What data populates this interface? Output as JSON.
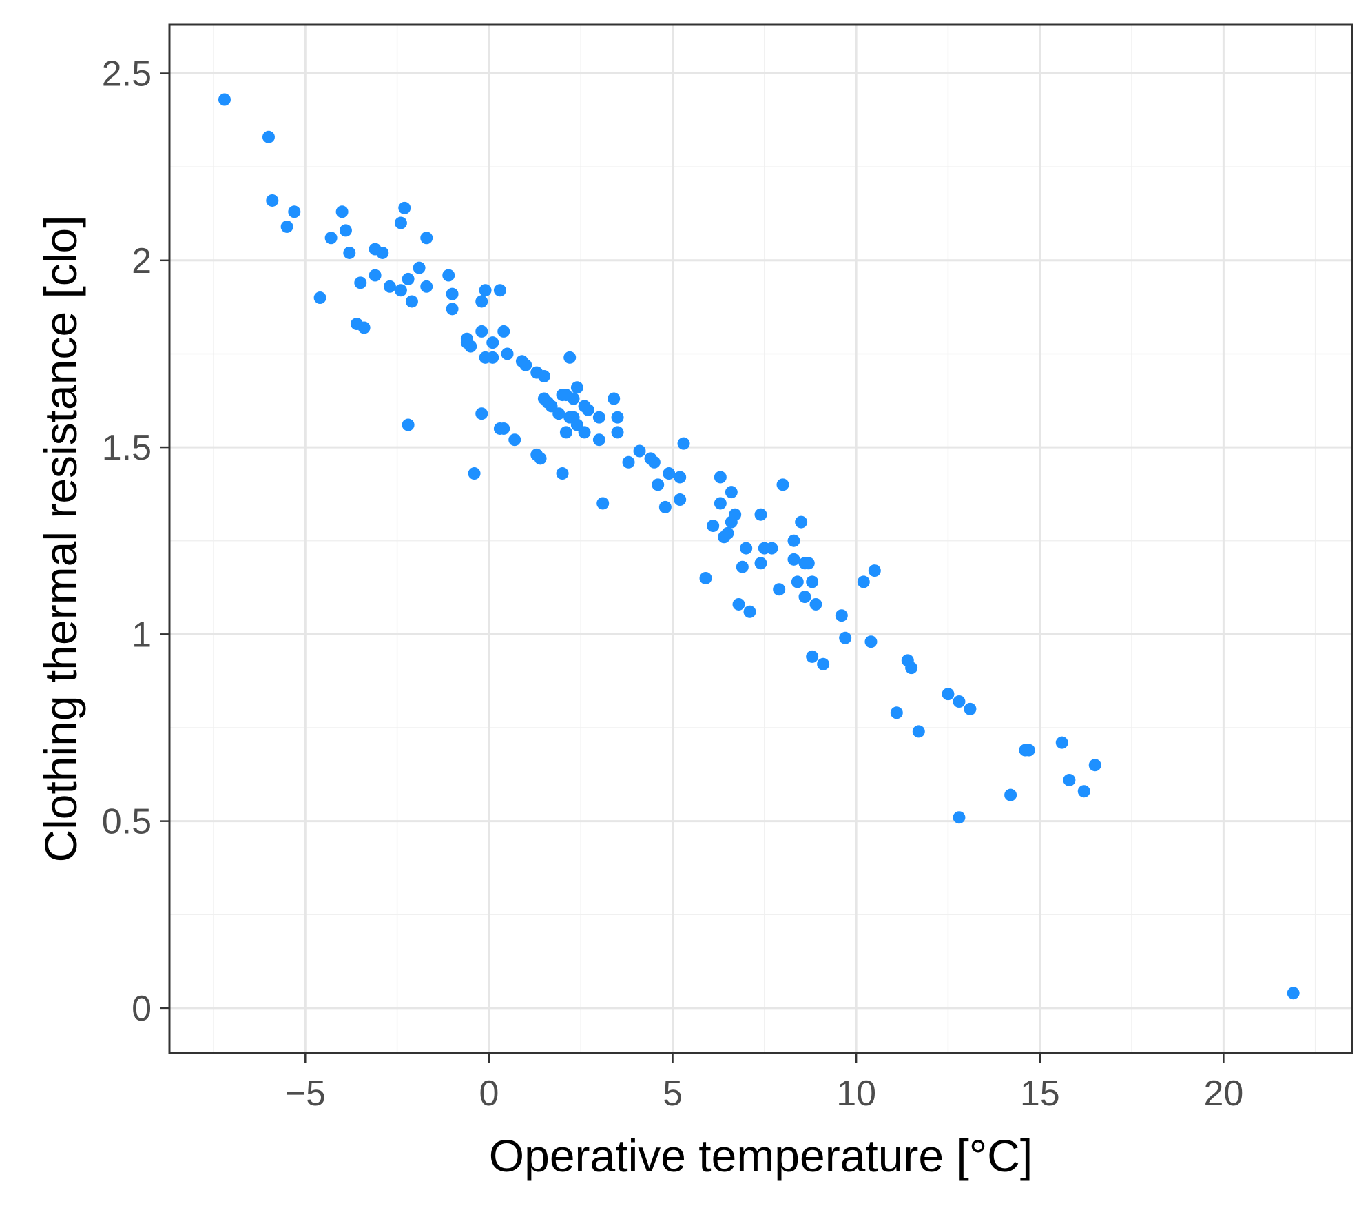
{
  "chart_data": {
    "type": "scatter",
    "title": "",
    "xlabel": "Operative temperature [°C]",
    "ylabel": "Clothing thermal resistance [clo]",
    "xlim": [
      -8.7,
      23.5
    ],
    "ylim": [
      -0.12,
      2.63
    ],
    "x_ticks": [
      -5,
      0,
      5,
      10,
      15,
      20
    ],
    "x_tick_labels": [
      "−5",
      "0",
      "5",
      "10",
      "15",
      "20"
    ],
    "y_ticks": [
      0,
      0.5,
      1,
      1.5,
      2,
      2.5
    ],
    "y_tick_labels": [
      "0",
      "0.5",
      "1",
      "1.5",
      "2",
      "2.5"
    ],
    "grid": true,
    "point_color": "#1e90ff",
    "series": [
      {
        "name": "observations",
        "points": [
          [
            -7.2,
            2.43
          ],
          [
            -6.0,
            2.33
          ],
          [
            -5.9,
            2.16
          ],
          [
            -5.5,
            2.09
          ],
          [
            -5.3,
            2.13
          ],
          [
            -4.6,
            1.9
          ],
          [
            -4.3,
            2.06
          ],
          [
            -4.0,
            2.13
          ],
          [
            -3.9,
            2.08
          ],
          [
            -3.8,
            2.02
          ],
          [
            -3.6,
            1.83
          ],
          [
            -3.5,
            1.94
          ],
          [
            -3.4,
            1.82
          ],
          [
            -3.1,
            2.03
          ],
          [
            -3.1,
            1.96
          ],
          [
            -2.9,
            2.02
          ],
          [
            -2.7,
            1.93
          ],
          [
            -2.4,
            2.1
          ],
          [
            -2.4,
            1.92
          ],
          [
            -2.3,
            2.14
          ],
          [
            -2.2,
            1.95
          ],
          [
            -2.1,
            1.89
          ],
          [
            -1.9,
            1.98
          ],
          [
            -1.7,
            2.06
          ],
          [
            -1.7,
            1.93
          ],
          [
            -2.2,
            1.56
          ],
          [
            -1.1,
            1.96
          ],
          [
            -1.0,
            1.91
          ],
          [
            -1.0,
            1.87
          ],
          [
            -0.6,
            1.79
          ],
          [
            -0.6,
            1.78
          ],
          [
            -0.5,
            1.77
          ],
          [
            -0.2,
            1.89
          ],
          [
            -0.1,
            1.92
          ],
          [
            -0.2,
            1.81
          ],
          [
            -0.1,
            1.74
          ],
          [
            0.1,
            1.78
          ],
          [
            0.1,
            1.74
          ],
          [
            0.3,
            1.92
          ],
          [
            0.4,
            1.81
          ],
          [
            0.5,
            1.75
          ],
          [
            -0.2,
            1.59
          ],
          [
            -0.4,
            1.43
          ],
          [
            0.3,
            1.55
          ],
          [
            0.4,
            1.55
          ],
          [
            0.7,
            1.52
          ],
          [
            0.9,
            1.73
          ],
          [
            1.0,
            1.72
          ],
          [
            1.3,
            1.7
          ],
          [
            1.5,
            1.69
          ],
          [
            1.5,
            1.63
          ],
          [
            1.6,
            1.62
          ],
          [
            1.7,
            1.61
          ],
          [
            1.9,
            1.59
          ],
          [
            2.0,
            1.64
          ],
          [
            2.1,
            1.64
          ],
          [
            2.2,
            1.74
          ],
          [
            2.2,
            1.58
          ],
          [
            2.1,
            1.54
          ],
          [
            2.3,
            1.63
          ],
          [
            2.3,
            1.58
          ],
          [
            2.4,
            1.66
          ],
          [
            2.4,
            1.56
          ],
          [
            2.6,
            1.61
          ],
          [
            2.6,
            1.54
          ],
          [
            2.7,
            1.6
          ],
          [
            3.0,
            1.58
          ],
          [
            3.0,
            1.52
          ],
          [
            3.4,
            1.63
          ],
          [
            3.5,
            1.58
          ],
          [
            3.5,
            1.54
          ],
          [
            1.3,
            1.48
          ],
          [
            1.4,
            1.47
          ],
          [
            2.0,
            1.43
          ],
          [
            3.1,
            1.35
          ],
          [
            3.8,
            1.46
          ],
          [
            4.1,
            1.49
          ],
          [
            4.4,
            1.47
          ],
          [
            4.5,
            1.46
          ],
          [
            4.6,
            1.4
          ],
          [
            4.9,
            1.43
          ],
          [
            5.2,
            1.42
          ],
          [
            4.8,
            1.34
          ],
          [
            5.2,
            1.36
          ],
          [
            5.3,
            1.51
          ],
          [
            5.9,
            1.15
          ],
          [
            6.1,
            1.29
          ],
          [
            6.3,
            1.42
          ],
          [
            6.3,
            1.35
          ],
          [
            6.4,
            1.26
          ],
          [
            6.5,
            1.27
          ],
          [
            6.6,
            1.38
          ],
          [
            6.6,
            1.3
          ],
          [
            6.7,
            1.32
          ],
          [
            6.8,
            1.08
          ],
          [
            6.9,
            1.18
          ],
          [
            7.0,
            1.23
          ],
          [
            7.1,
            1.06
          ],
          [
            7.4,
            1.32
          ],
          [
            7.4,
            1.19
          ],
          [
            7.5,
            1.23
          ],
          [
            7.7,
            1.23
          ],
          [
            7.9,
            1.12
          ],
          [
            8.0,
            1.4
          ],
          [
            8.3,
            1.25
          ],
          [
            8.3,
            1.2
          ],
          [
            8.4,
            1.14
          ],
          [
            8.5,
            1.3
          ],
          [
            8.6,
            1.19
          ],
          [
            8.6,
            1.1
          ],
          [
            8.7,
            1.19
          ],
          [
            8.8,
            1.14
          ],
          [
            8.9,
            1.08
          ],
          [
            8.8,
            0.94
          ],
          [
            9.1,
            0.92
          ],
          [
            9.6,
            1.05
          ],
          [
            9.7,
            0.99
          ],
          [
            10.2,
            1.14
          ],
          [
            10.4,
            0.98
          ],
          [
            10.5,
            1.17
          ],
          [
            11.1,
            0.79
          ],
          [
            11.4,
            0.93
          ],
          [
            11.5,
            0.91
          ],
          [
            11.7,
            0.74
          ],
          [
            12.5,
            0.84
          ],
          [
            12.8,
            0.82
          ],
          [
            13.1,
            0.8
          ],
          [
            12.8,
            0.51
          ],
          [
            14.2,
            0.57
          ],
          [
            14.6,
            0.69
          ],
          [
            14.7,
            0.69
          ],
          [
            15.6,
            0.71
          ],
          [
            15.8,
            0.61
          ],
          [
            16.2,
            0.58
          ],
          [
            16.5,
            0.65
          ],
          [
            21.9,
            0.04
          ]
        ]
      }
    ]
  }
}
